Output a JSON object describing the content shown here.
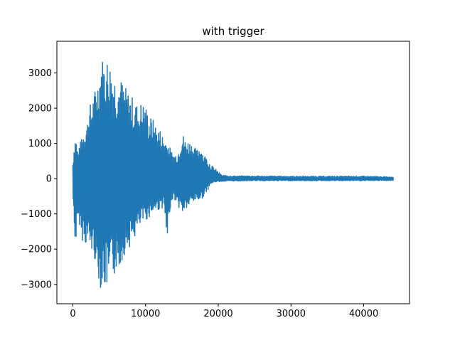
{
  "chart_data": {
    "type": "line",
    "title": "with trigger",
    "xlabel": "",
    "ylabel": "",
    "xlim": [
      -2200,
      46300
    ],
    "ylim": [
      -3550,
      3900
    ],
    "x_ticks": [
      0,
      10000,
      20000,
      30000,
      40000
    ],
    "x_tick_labels": [
      "0",
      "10000",
      "20000",
      "30000",
      "40000"
    ],
    "y_ticks": [
      -3000,
      -2000,
      -1000,
      0,
      1000,
      2000,
      3000
    ],
    "y_tick_labels": [
      "−3000",
      "−2000",
      "−1000",
      "0",
      "1000",
      "2000",
      "3000"
    ],
    "grid": false,
    "legend": "none",
    "series": [
      {
        "color": "#1f77b4",
        "x_start": 0,
        "x_end": 44100,
        "envelope_x": [
          0,
          200,
          400,
          600,
          800,
          1000,
          1200,
          1500,
          1800,
          2000,
          2200,
          2500,
          2800,
          3000,
          3300,
          3600,
          3900,
          4200,
          4500,
          4800,
          5000,
          5200,
          5500,
          6000,
          6500,
          7000,
          7500,
          8000,
          8500,
          9000,
          9500,
          10000,
          10500,
          11000,
          11500,
          12000,
          12500,
          13000,
          13500,
          14000,
          14500,
          15000,
          15500,
          16000,
          16500,
          17000,
          17500,
          18000,
          18500,
          19000,
          19500,
          20000,
          20500,
          22000,
          25000,
          30000,
          35000,
          40000,
          44100
        ],
        "envelope_max": [
          500,
          1100,
          1300,
          900,
          800,
          1000,
          1300,
          1400,
          1600,
          1700,
          2000,
          2200,
          2400,
          2500,
          2800,
          3000,
          3550,
          3400,
          3500,
          3450,
          3400,
          3300,
          3100,
          2900,
          2900,
          2700,
          2500,
          2400,
          2200,
          2100,
          2200,
          2100,
          1800,
          1700,
          1500,
          1400,
          1200,
          1100,
          800,
          700,
          800,
          1350,
          1100,
          1100,
          1000,
          800,
          1000,
          700,
          600,
          400,
          300,
          200,
          100,
          80,
          80,
          70,
          70,
          70,
          50
        ],
        "envelope_min": [
          -500,
          -1600,
          -1900,
          -1500,
          -1200,
          -1400,
          -1800,
          -1700,
          -1900,
          -1800,
          -2000,
          -2100,
          -2200,
          -2300,
          -2700,
          -2900,
          -3200,
          -3000,
          -3200,
          -3150,
          -3100,
          -2900,
          -2900,
          -2600,
          -2500,
          -2200,
          -2000,
          -1900,
          -1700,
          -1500,
          -1300,
          -1200,
          -1100,
          -1000,
          -900,
          -900,
          -800,
          -2000,
          -600,
          -600,
          -800,
          -1000,
          -900,
          -800,
          -700,
          -600,
          -650,
          -500,
          -350,
          -150,
          -100,
          -90,
          -80,
          -70,
          -60,
          -60,
          -60,
          -60,
          -50
        ]
      }
    ]
  }
}
